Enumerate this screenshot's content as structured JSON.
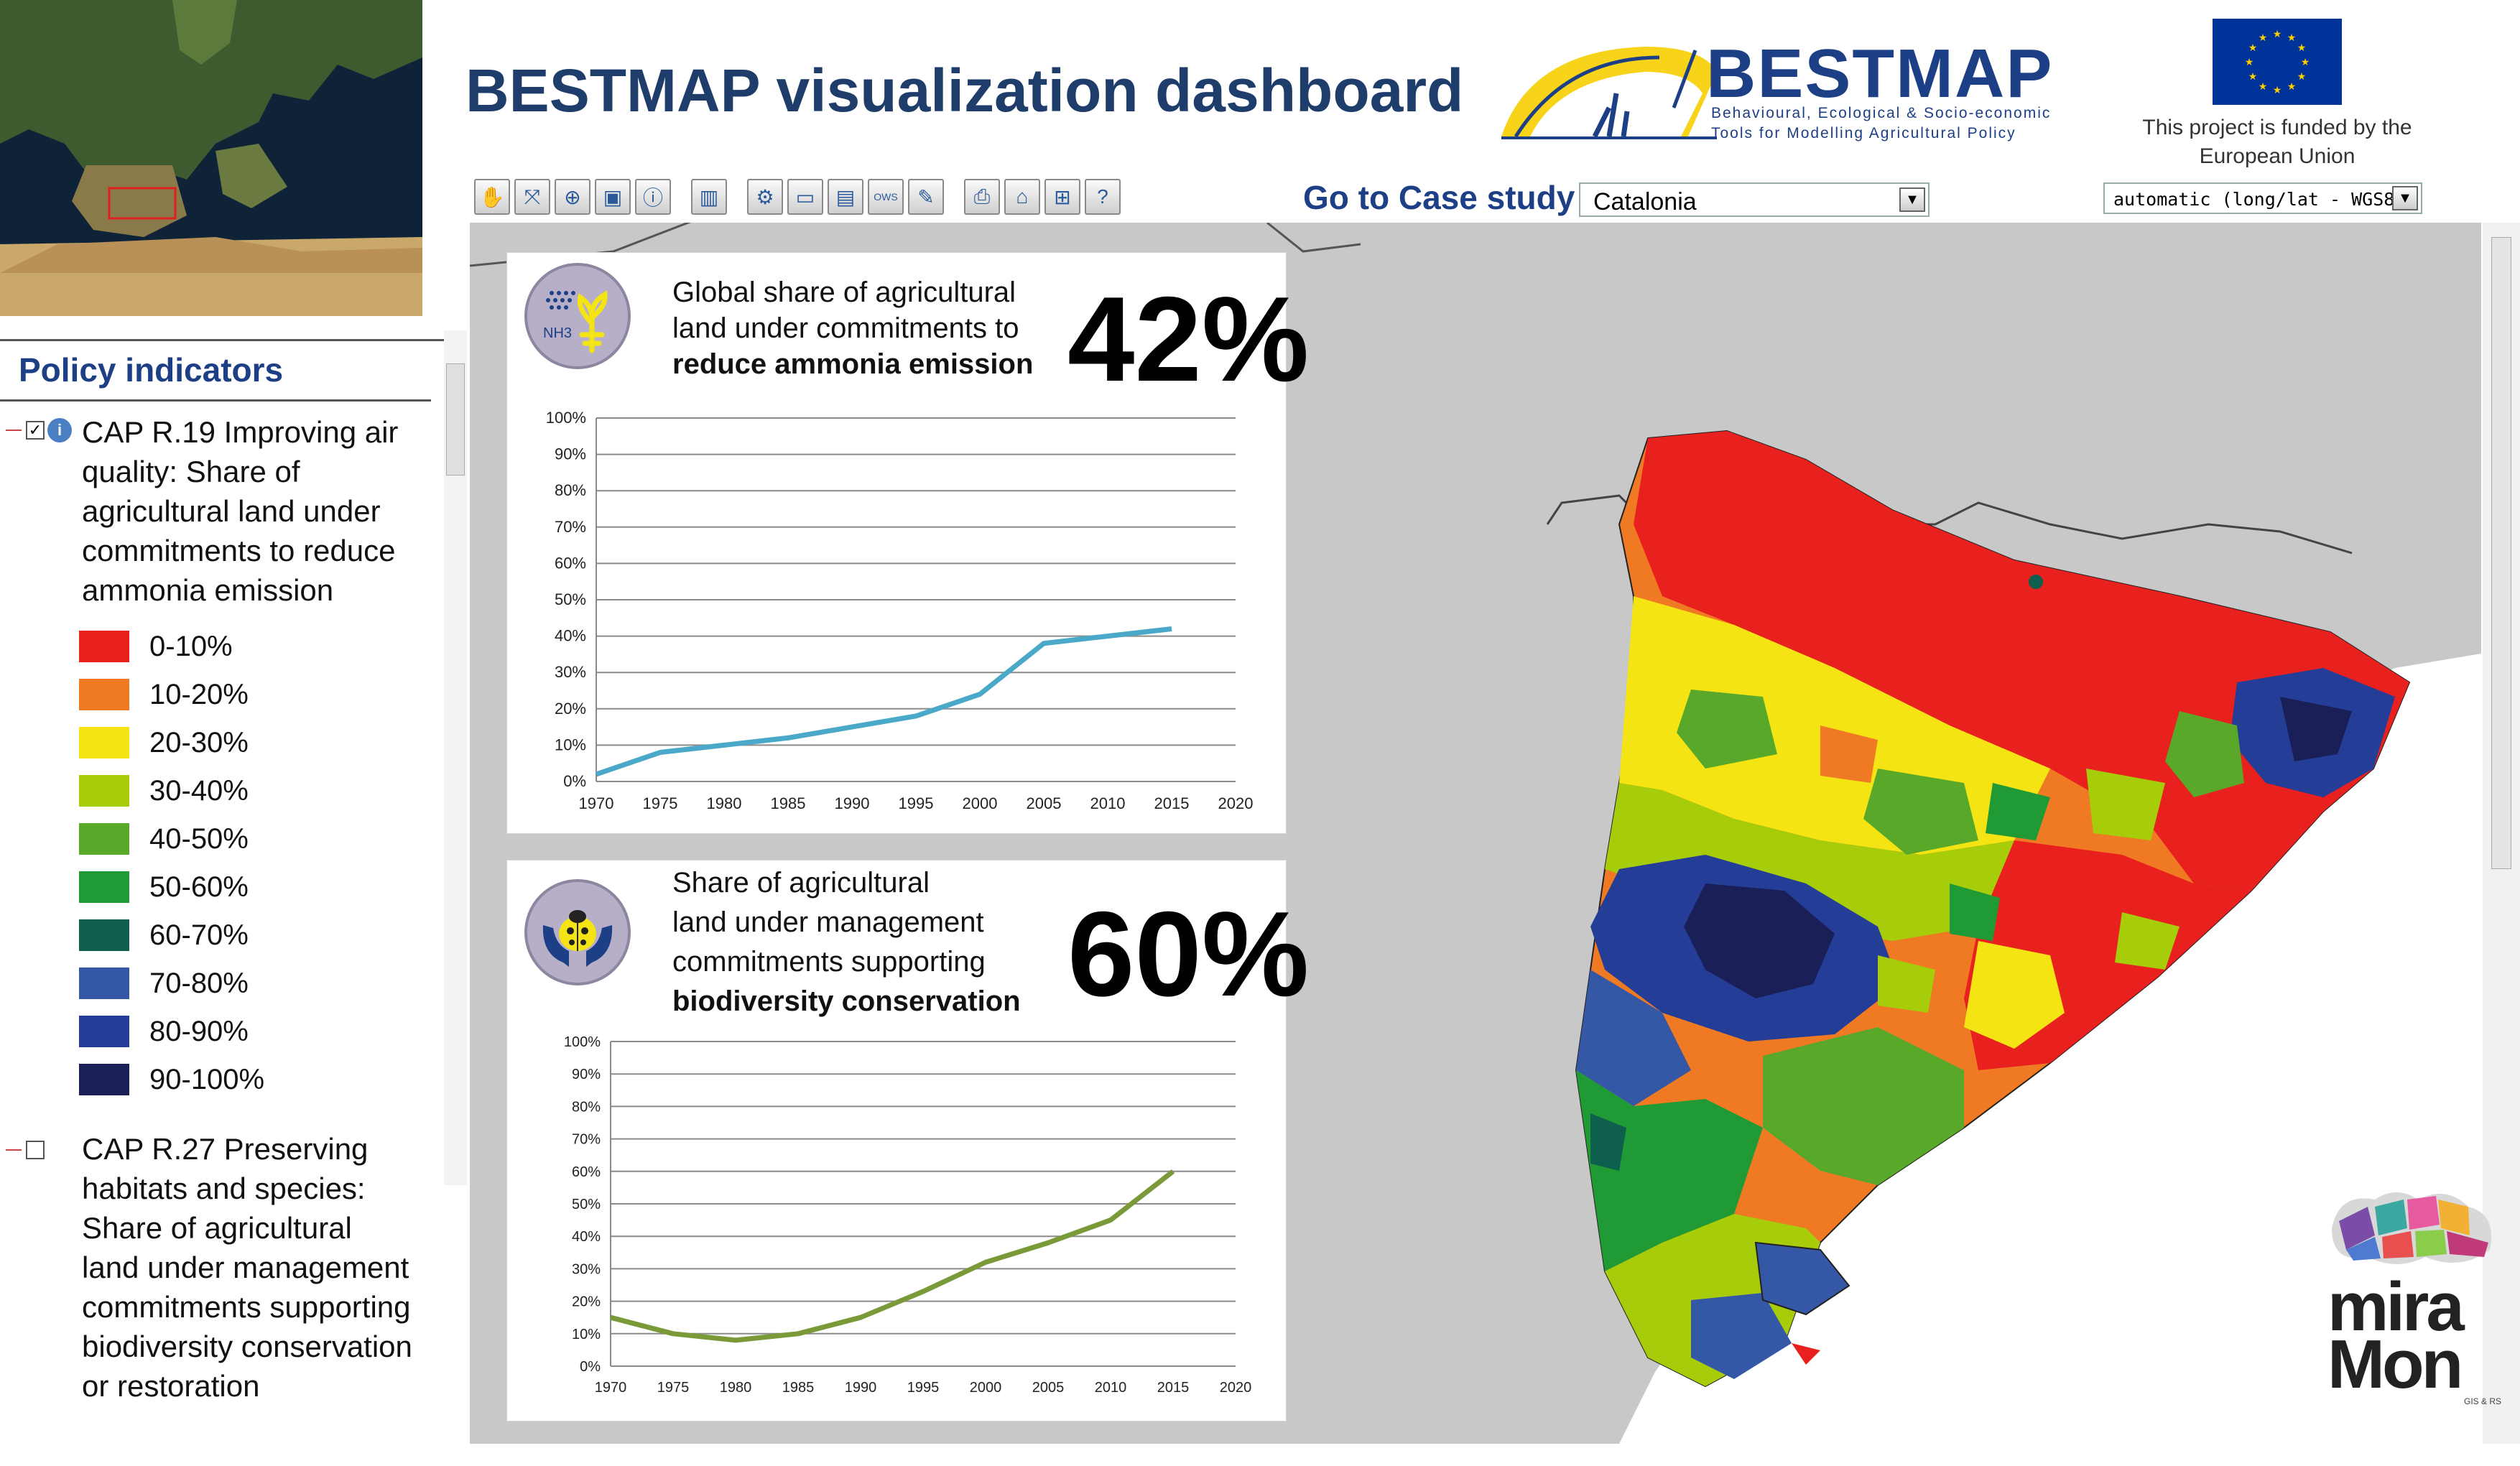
{
  "header": {
    "title": "BESTMAP visualization dashboard",
    "logo_name": "BESTMAP",
    "logo_tagline_1": "Behavioural, Ecological & Socio-economic",
    "logo_tagline_2": "Tools for Modelling Agricultural Policy",
    "funding_text": "This project is funded by the European Union"
  },
  "toolbar": {
    "buttons": [
      {
        "icon": "hand-pan-icon",
        "glyph": "✋"
      },
      {
        "icon": "zoom-extent-icon",
        "glyph": "⤧"
      },
      {
        "icon": "zoom-in-icon",
        "glyph": "⊕"
      },
      {
        "icon": "zoom-window-icon",
        "glyph": "▣"
      },
      {
        "icon": "info-query-icon",
        "glyph": "ⓘ"
      },
      {
        "icon": "film-icon",
        "glyph": "▥"
      },
      {
        "icon": "settings-icon",
        "glyph": "⚙"
      },
      {
        "icon": "window-icon",
        "glyph": "▭"
      },
      {
        "icon": "layers-icon",
        "glyph": "▤"
      },
      {
        "icon": "ows-icon",
        "glyph": "OWS"
      },
      {
        "icon": "edit-icon",
        "glyph": "✎"
      },
      {
        "icon": "print-icon",
        "glyph": "⎙"
      },
      {
        "icon": "home-icon",
        "glyph": "⌂"
      },
      {
        "icon": "network-icon",
        "glyph": "⊞"
      },
      {
        "icon": "help-icon",
        "glyph": "?"
      }
    ]
  },
  "case_study": {
    "label": "Go to Case study",
    "selected": "Catalonia"
  },
  "crs": {
    "selected": "automatic (long/lat - WGS84)"
  },
  "panel": {
    "heading": "Policy indicators",
    "indicator_1": {
      "checked": true,
      "lines": [
        "CAP R.19 Improving air",
        "quality: Share of",
        "agricultural land under",
        "commitments to reduce",
        "ammonia emission"
      ]
    },
    "indicator_2": {
      "checked": false,
      "lines": [
        "CAP R.27 Preserving",
        "habitats and species:",
        "Share of agricultural",
        "land under management",
        "commitments supporting",
        "biodiversity conservation",
        "or restoration"
      ]
    },
    "legend": [
      {
        "label": "0-10%",
        "color": "#e8201e"
      },
      {
        "label": "10-20%",
        "color": "#f07a24"
      },
      {
        "label": "20-30%",
        "color": "#f5e414"
      },
      {
        "label": "30-40%",
        "color": "#a6cc0a"
      },
      {
        "label": "40-50%",
        "color": "#5aa82a"
      },
      {
        "label": "50-60%",
        "color": "#1f9a34"
      },
      {
        "label": "60-70%",
        "color": "#0e5f4e"
      },
      {
        "label": "70-80%",
        "color": "#3458a6"
      },
      {
        "label": "80-90%",
        "color": "#243d96"
      },
      {
        "label": "90-100%",
        "color": "#1a1f58"
      }
    ]
  },
  "card1": {
    "line1": "Global share of agricultural",
    "line2": "land under commitments to",
    "line3_bold": "reduce ammonia emission",
    "value": "42%",
    "icon_label": "NH3"
  },
  "card2": {
    "line1": "Share of agricultural",
    "line2": "land under management",
    "line3": "commitments supporting",
    "line4_bold": "biodiversity conservation",
    "value": "60%"
  },
  "chart_data": [
    {
      "type": "line",
      "x": [
        1970,
        1975,
        1980,
        1985,
        1990,
        1995,
        2000,
        2005,
        2010,
        2015
      ],
      "series": [
        {
          "values": [
            2,
            8,
            10,
            12,
            15,
            18,
            24,
            38,
            40,
            42
          ],
          "color": "#4aa8c8"
        }
      ],
      "xticks": [
        "1970",
        "1975",
        "1980",
        "1985",
        "1990",
        "1995",
        "2000",
        "2005",
        "2010",
        "2015",
        "2020"
      ],
      "yticks": [
        "0%",
        "10%",
        "20%",
        "30%",
        "40%",
        "50%",
        "60%",
        "70%",
        "80%",
        "90%",
        "100%"
      ],
      "ylim": [
        0,
        100
      ],
      "xlim": [
        1970,
        2020
      ],
      "grid": true
    },
    {
      "type": "line",
      "x": [
        1970,
        1975,
        1980,
        1985,
        1990,
        1995,
        2000,
        2005,
        2010,
        2015
      ],
      "series": [
        {
          "values": [
            15,
            10,
            8,
            10,
            15,
            23,
            32,
            38,
            45,
            60
          ],
          "color": "#7a9a3a"
        }
      ],
      "xticks": [
        "1970",
        "1975",
        "1980",
        "1985",
        "1990",
        "1995",
        "2000",
        "2005",
        "2010",
        "2015",
        "2020"
      ],
      "yticks": [
        "0%",
        "10%",
        "20%",
        "30%",
        "40%",
        "50%",
        "60%",
        "70%",
        "80%",
        "90%",
        "100%"
      ],
      "ylim": [
        0,
        100
      ],
      "xlim": [
        1970,
        2020
      ],
      "grid": true
    }
  ],
  "miramon": {
    "name_line1": "mira",
    "name_line2": "Mon",
    "small": "GIS & RS"
  }
}
